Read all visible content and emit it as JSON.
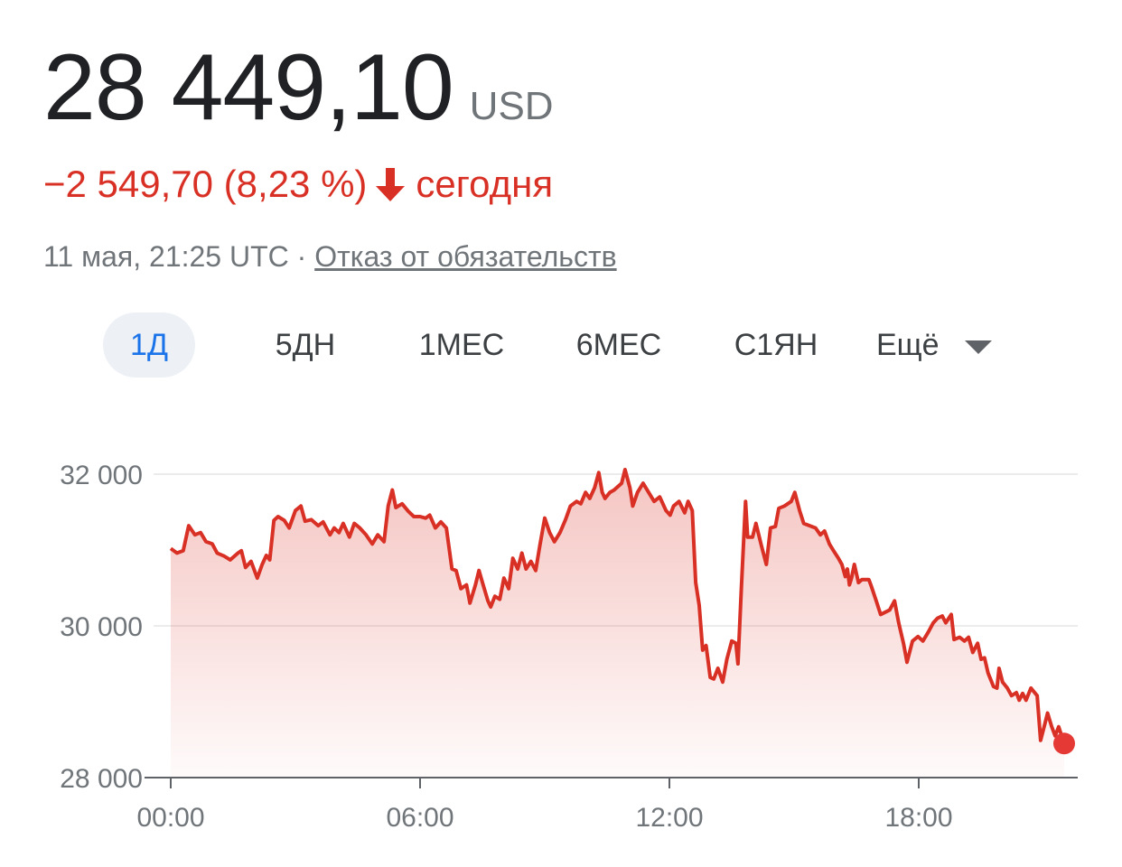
{
  "header": {
    "price": "28 449,10",
    "currency": "USD",
    "change": "−2 549,70 (8,23 %)",
    "change_direction": "down",
    "change_suffix": "сегодня",
    "timestamp": "11 мая, 21:25 UTC",
    "separator": "·",
    "disclaimer_link": "Отказ от обязательств"
  },
  "tabs": [
    {
      "label": "1Д",
      "active": true
    },
    {
      "label": "5ДН",
      "active": false
    },
    {
      "label": "1МЕС",
      "active": false
    },
    {
      "label": "6МЕС",
      "active": false
    },
    {
      "label": "С1ЯН",
      "active": false
    },
    {
      "label": "Ещё",
      "active": false
    }
  ],
  "colors": {
    "negative": "#d93025",
    "active_tab": "#1a73e8",
    "muted": "#70757a"
  },
  "chart_data": {
    "type": "area",
    "xlabel": "",
    "ylabel": "",
    "ylim": [
      28000,
      32000
    ],
    "xlim": [
      "00:00",
      "22:00"
    ],
    "y_ticks": [
      "32 000",
      "30 000",
      "28 000"
    ],
    "y_tick_values": [
      32000,
      30000,
      28000
    ],
    "x_ticks": [
      "00:00",
      "06:00",
      "12:00",
      "18:00"
    ],
    "grid": true,
    "line_color": "#d93025",
    "points": [
      [
        "00:00",
        31020
      ],
      [
        "00:09",
        30960
      ],
      [
        "00:18",
        30990
      ],
      [
        "00:26",
        31320
      ],
      [
        "00:35",
        31200
      ],
      [
        "00:43",
        31230
      ],
      [
        "00:51",
        31110
      ],
      [
        "01:00",
        31080
      ],
      [
        "01:07",
        30960
      ],
      [
        "01:17",
        30920
      ],
      [
        "01:26",
        30870
      ],
      [
        "01:37",
        30960
      ],
      [
        "01:42",
        30990
      ],
      [
        "01:48",
        30770
      ],
      [
        "01:56",
        30850
      ],
      [
        "02:05",
        30630
      ],
      [
        "02:12",
        30810
      ],
      [
        "02:18",
        30930
      ],
      [
        "02:23",
        30870
      ],
      [
        "02:29",
        31390
      ],
      [
        "02:35",
        31440
      ],
      [
        "02:44",
        31390
      ],
      [
        "02:51",
        31290
      ],
      [
        "03:00",
        31520
      ],
      [
        "03:08",
        31580
      ],
      [
        "03:14",
        31380
      ],
      [
        "03:23",
        31400
      ],
      [
        "03:33",
        31320
      ],
      [
        "03:40",
        31370
      ],
      [
        "03:50",
        31200
      ],
      [
        "03:56",
        31290
      ],
      [
        "04:03",
        31230
      ],
      [
        "04:09",
        31350
      ],
      [
        "04:18",
        31170
      ],
      [
        "04:25",
        31350
      ],
      [
        "04:33",
        31290
      ],
      [
        "04:42",
        31200
      ],
      [
        "04:51",
        31080
      ],
      [
        "04:59",
        31200
      ],
      [
        "05:08",
        31110
      ],
      [
        "05:14",
        31580
      ],
      [
        "05:20",
        31790
      ],
      [
        "05:25",
        31560
      ],
      [
        "05:34",
        31610
      ],
      [
        "05:43",
        31510
      ],
      [
        "05:51",
        31440
      ],
      [
        "06:00",
        31440
      ],
      [
        "06:08",
        31420
      ],
      [
        "06:14",
        31460
      ],
      [
        "06:22",
        31290
      ],
      [
        "06:30",
        31370
      ],
      [
        "06:38",
        31290
      ],
      [
        "06:46",
        30750
      ],
      [
        "06:52",
        30730
      ],
      [
        "06:59",
        30490
      ],
      [
        "07:07",
        30540
      ],
      [
        "07:12",
        30300
      ],
      [
        "07:20",
        30540
      ],
      [
        "07:25",
        30730
      ],
      [
        "07:31",
        30540
      ],
      [
        "07:38",
        30330
      ],
      [
        "07:42",
        30250
      ],
      [
        "07:48",
        30390
      ],
      [
        "07:55",
        30350
      ],
      [
        "08:01",
        30630
      ],
      [
        "08:08",
        30490
      ],
      [
        "08:14",
        30890
      ],
      [
        "08:21",
        30750
      ],
      [
        "08:27",
        30960
      ],
      [
        "08:33",
        30750
      ],
      [
        "08:40",
        30850
      ],
      [
        "08:47",
        30730
      ],
      [
        "08:53",
        31060
      ],
      [
        "09:00",
        31420
      ],
      [
        "09:07",
        31230
      ],
      [
        "09:14",
        31110
      ],
      [
        "09:22",
        31230
      ],
      [
        "09:30",
        31400
      ],
      [
        "09:37",
        31580
      ],
      [
        "09:46",
        31640
      ],
      [
        "09:52",
        31610
      ],
      [
        "09:59",
        31760
      ],
      [
        "10:05",
        31680
      ],
      [
        "10:12",
        31820
      ],
      [
        "10:18",
        32020
      ],
      [
        "10:23",
        31760
      ],
      [
        "10:27",
        31680
      ],
      [
        "10:34",
        31760
      ],
      [
        "10:40",
        31790
      ],
      [
        "10:51",
        31880
      ],
      [
        "10:56",
        32060
      ],
      [
        "11:03",
        31820
      ],
      [
        "11:07",
        31580
      ],
      [
        "11:14",
        31760
      ],
      [
        "11:22",
        31880
      ],
      [
        "11:30",
        31760
      ],
      [
        "11:38",
        31640
      ],
      [
        "11:46",
        31700
      ],
      [
        "11:55",
        31520
      ],
      [
        "12:01",
        31460
      ],
      [
        "12:06",
        31580
      ],
      [
        "12:14",
        31640
      ],
      [
        "12:22",
        31490
      ],
      [
        "12:27",
        31640
      ],
      [
        "12:33",
        31520
      ],
      [
        "12:38",
        30570
      ],
      [
        "12:43",
        30270
      ],
      [
        "12:48",
        29680
      ],
      [
        "12:53",
        29740
      ],
      [
        "12:59",
        29320
      ],
      [
        "13:04",
        29300
      ],
      [
        "13:10",
        29440
      ],
      [
        "13:17",
        29260
      ],
      [
        "13:23",
        29560
      ],
      [
        "13:30",
        29800
      ],
      [
        "13:36",
        29770
      ],
      [
        "13:39",
        29500
      ],
      [
        "13:44",
        30510
      ],
      [
        "13:50",
        31640
      ],
      [
        "13:53",
        31170
      ],
      [
        "14:00",
        31170
      ],
      [
        "14:05",
        31350
      ],
      [
        "14:13",
        31050
      ],
      [
        "14:20",
        30810
      ],
      [
        "14:26",
        31290
      ],
      [
        "14:33",
        31310
      ],
      [
        "14:38",
        31550
      ],
      [
        "14:46",
        31580
      ],
      [
        "14:56",
        31640
      ],
      [
        "15:01",
        31760
      ],
      [
        "15:08",
        31520
      ],
      [
        "15:14",
        31350
      ],
      [
        "15:31",
        31290
      ],
      [
        "15:38",
        31200
      ],
      [
        "15:44",
        31250
      ],
      [
        "15:51",
        31080
      ],
      [
        "15:57",
        30990
      ],
      [
        "16:04",
        30890
      ],
      [
        "16:09",
        30810
      ],
      [
        "16:14",
        30650
      ],
      [
        "16:17",
        30750
      ],
      [
        "16:20",
        30540
      ],
      [
        "16:23",
        30630
      ],
      [
        "16:27",
        30810
      ],
      [
        "16:33",
        30570
      ],
      [
        "16:38",
        30610
      ],
      [
        "16:48",
        30610
      ],
      [
        "16:52",
        30510
      ],
      [
        "16:59",
        30320
      ],
      [
        "17:05",
        30150
      ],
      [
        "17:18",
        30210
      ],
      [
        "17:25",
        30330
      ],
      [
        "17:31",
        30040
      ],
      [
        "17:38",
        29770
      ],
      [
        "17:43",
        29520
      ],
      [
        "17:51",
        29800
      ],
      [
        "17:59",
        29860
      ],
      [
        "18:06",
        29800
      ],
      [
        "18:14",
        29920
      ],
      [
        "18:21",
        30040
      ],
      [
        "18:27",
        30100
      ],
      [
        "18:34",
        30130
      ],
      [
        "18:39",
        30040
      ],
      [
        "18:47",
        30150
      ],
      [
        "18:51",
        29820
      ],
      [
        "18:59",
        29850
      ],
      [
        "19:06",
        29800
      ],
      [
        "19:12",
        29850
      ],
      [
        "19:18",
        29650
      ],
      [
        "19:25",
        29770
      ],
      [
        "19:30",
        29560
      ],
      [
        "19:35",
        29580
      ],
      [
        "19:40",
        29380
      ],
      [
        "19:48",
        29200
      ],
      [
        "19:53",
        29180
      ],
      [
        "19:56",
        29440
      ],
      [
        "20:01",
        29260
      ],
      [
        "20:08",
        29180
      ],
      [
        "20:14",
        29080
      ],
      [
        "20:21",
        29120
      ],
      [
        "20:25",
        29020
      ],
      [
        "20:30",
        29110
      ],
      [
        "20:35",
        29020
      ],
      [
        "20:42",
        29180
      ],
      [
        "20:51",
        29080
      ],
      [
        "20:56",
        28490
      ],
      [
        "21:01",
        28670
      ],
      [
        "21:06",
        28850
      ],
      [
        "21:12",
        28670
      ],
      [
        "21:17",
        28550
      ],
      [
        "21:22",
        28670
      ],
      [
        "21:30",
        28449.1
      ]
    ]
  }
}
